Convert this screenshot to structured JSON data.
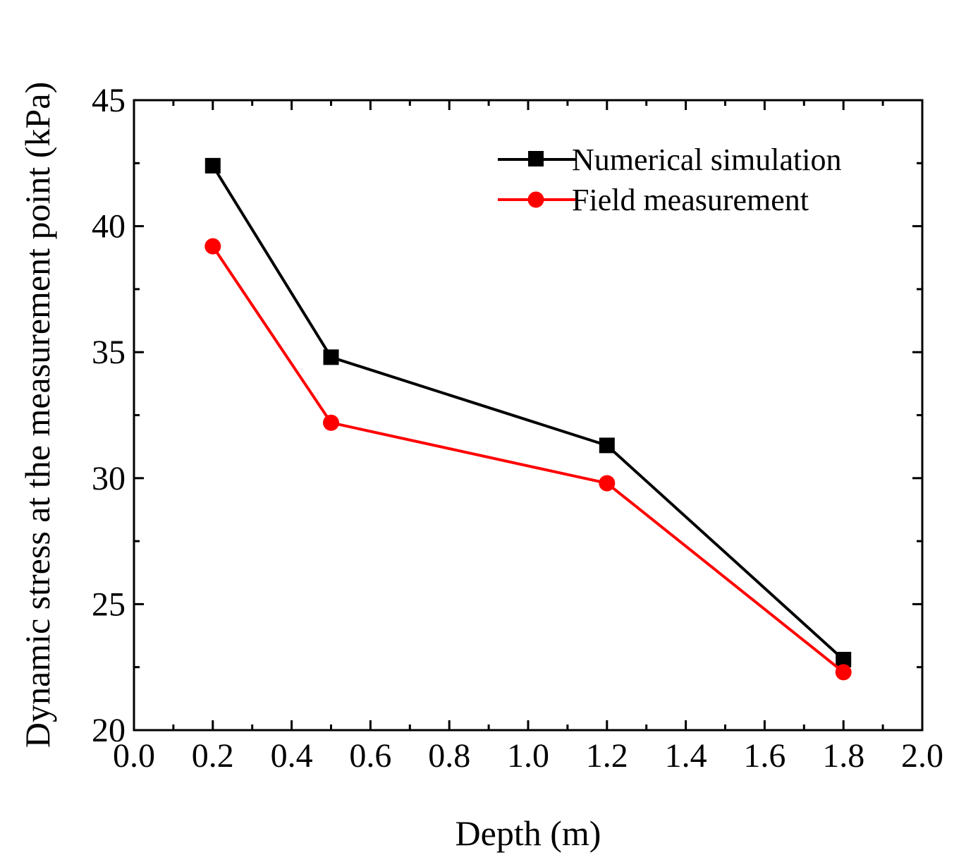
{
  "chart_data": {
    "type": "line",
    "title": "",
    "xlabel": "Depth (m)",
    "ylabel": "Dynamic stress at the measurement point (kPa)",
    "xlim": [
      0.0,
      2.0
    ],
    "ylim": [
      20,
      45
    ],
    "x_ticks": [
      "0.0",
      "0.2",
      "0.4",
      "0.6",
      "0.8",
      "1.0",
      "1.2",
      "1.4",
      "1.6",
      "1.8",
      "2.0"
    ],
    "y_ticks": [
      "20",
      "25",
      "30",
      "35",
      "40",
      "45"
    ],
    "x_tick_values": [
      0.0,
      0.2,
      0.4,
      0.6,
      0.8,
      1.0,
      1.2,
      1.4,
      1.6,
      1.8,
      2.0
    ],
    "y_tick_values": [
      20,
      25,
      30,
      35,
      40,
      45
    ],
    "x": [
      0.2,
      0.5,
      1.2,
      1.8
    ],
    "series": [
      {
        "name": "Numerical simulation",
        "color": "#000000",
        "marker": "square",
        "values": [
          42.4,
          34.8,
          31.3,
          22.8
        ]
      },
      {
        "name": "Field measurement",
        "color": "#ff0000",
        "marker": "circle",
        "values": [
          39.2,
          32.2,
          29.8,
          22.3
        ]
      }
    ],
    "legend_position": "top-right",
    "grid": false
  }
}
